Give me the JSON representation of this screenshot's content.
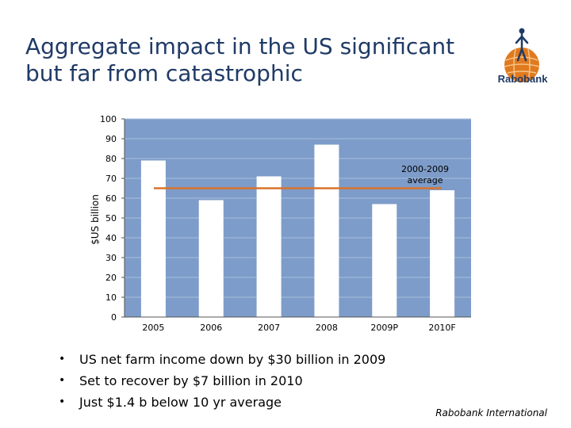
{
  "slide": {
    "title_line1": "Aggregate impact in the US significant",
    "title_line2": "but far from catastrophic",
    "logo_text": "Rabobank",
    "footer": "Rabobank International",
    "bullets": [
      "US net farm income down by $30 billion in 2009",
      "Set to recover by $7 billion in 2010",
      "Just $1.4 b below 10 yr average"
    ]
  },
  "colors": {
    "plot_background": "#7d9cc9",
    "bar_fill": "#ffffff",
    "average_line": "#d9732c",
    "title": "#1f3a66",
    "logo_orange": "#e07a1f"
  },
  "chart_data": {
    "type": "bar",
    "categories": [
      "2005",
      "2006",
      "2007",
      "2008",
      "2009P",
      "2010F"
    ],
    "values": [
      79,
      59,
      71,
      87,
      57,
      64
    ],
    "ylabel": "$US billion",
    "ylim": [
      0,
      100
    ],
    "yticks": [
      0,
      10,
      20,
      30,
      40,
      50,
      60,
      70,
      80,
      90,
      100
    ],
    "grid": true,
    "reference_line": {
      "value": 65,
      "label_line1": "2000-2009",
      "label_line2": "average"
    }
  }
}
